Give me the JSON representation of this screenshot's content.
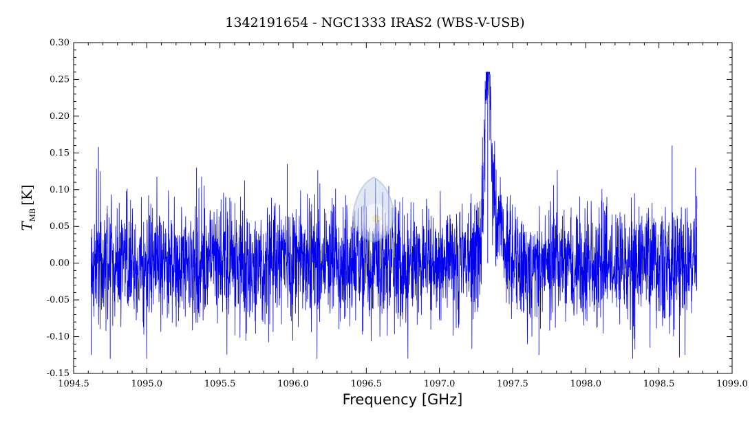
{
  "chart_data": {
    "type": "line",
    "title": "1342191654 - NGC1333 IRAS2 (WBS-V-USB)",
    "xlabel": "Frequency [GHz]",
    "ylabel": {
      "main": "T",
      "subscript": "MB",
      "unit": "[K]"
    },
    "xlim": [
      1094.5,
      1099.0
    ],
    "ylim": [
      -0.15,
      0.3
    ],
    "xticks": [
      "1094.5",
      "1095.0",
      "1095.5",
      "1096.0",
      "1096.5",
      "1097.0",
      "1097.5",
      "1098.0",
      "1098.5",
      "1099.0"
    ],
    "yticks": [
      "-0.15",
      "-0.10",
      "-0.05",
      "0.00",
      "0.05",
      "0.10",
      "0.15",
      "0.20",
      "0.25",
      "0.30"
    ],
    "grid": false,
    "legend": "none",
    "series": [
      {
        "color": "#0000ee",
        "x_range": [
          1094.62,
          1098.76
        ],
        "noise_rms": 0.04,
        "baseline": 0.0,
        "line_peak": {
          "x": 1097.33,
          "y": 0.26,
          "width_ghz": 0.02
        },
        "line_wing": {
          "x": 1097.38,
          "y": 0.06,
          "width_ghz": 0.06
        },
        "extrema": [
          {
            "x": 1094.62,
            "y": -0.125
          },
          {
            "x": 1094.67,
            "y": 0.158
          },
          {
            "x": 1094.75,
            "y": -0.13
          },
          {
            "x": 1095.34,
            "y": 0.13
          },
          {
            "x": 1095.96,
            "y": 0.135
          },
          {
            "x": 1097.33,
            "y": 0.258
          },
          {
            "x": 1097.68,
            "y": -0.125
          },
          {
            "x": 1098.59,
            "y": 0.16
          },
          {
            "x": 1098.64,
            "y": -0.128
          },
          {
            "x": 1098.75,
            "y": 0.13
          }
        ]
      }
    ]
  }
}
